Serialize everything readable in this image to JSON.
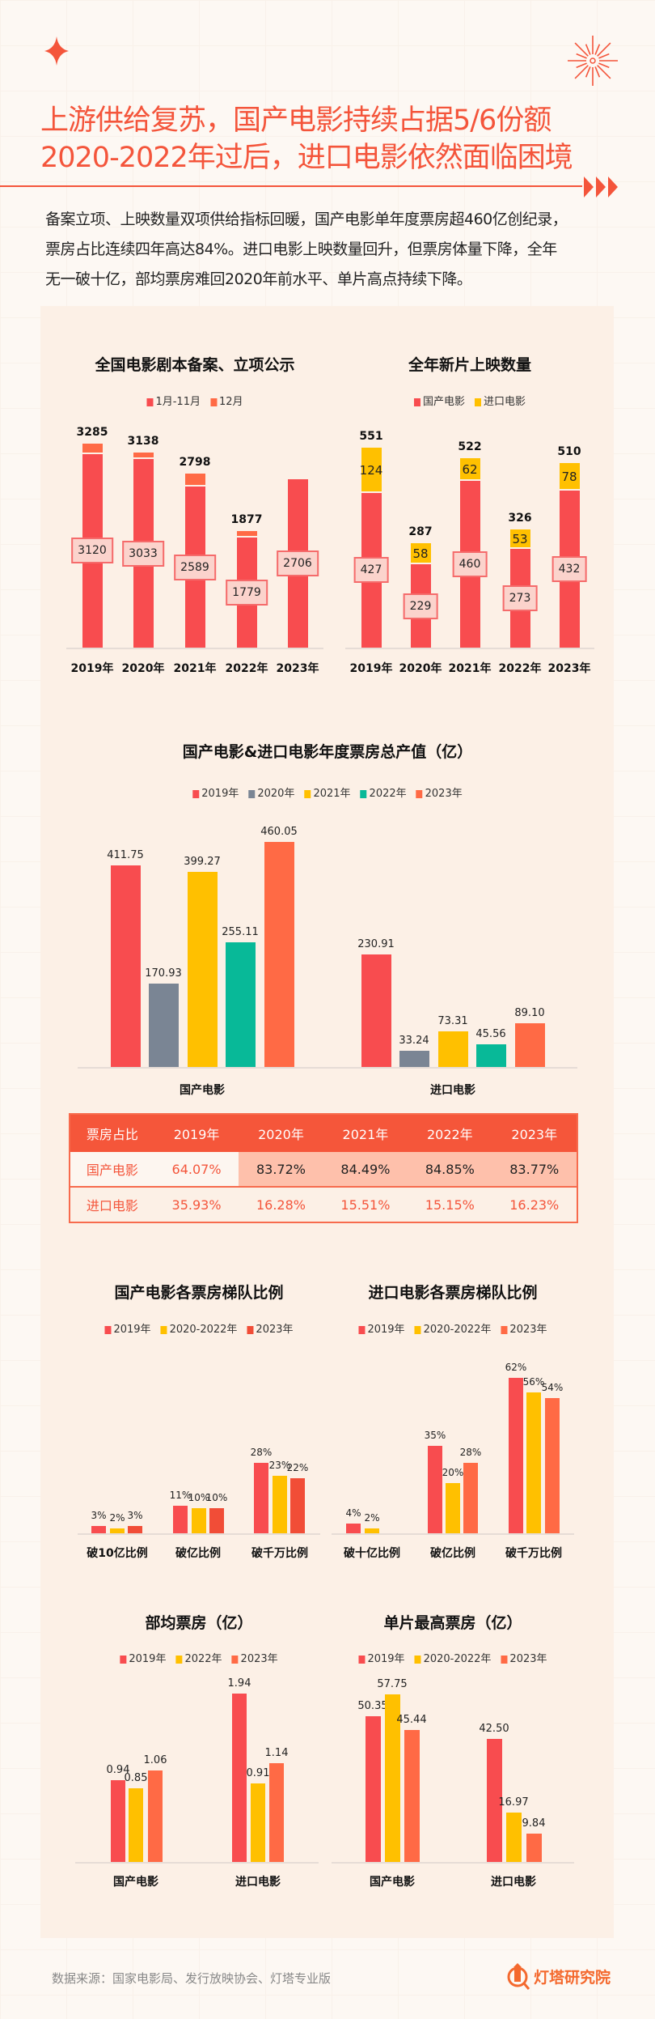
{
  "header": {
    "title_lines": [
      "上游供给复苏，国产电影持续占据5/6份额",
      "2020-2022年过后，进口电影依然面临困境"
    ],
    "summary_lines": [
      "备案立项、上映数量双项供给指标回暖，国产电影单年度票房超460亿创纪录，",
      "票房占比连续四年高达84%。进口电影上映数量回升，但票房体量下降，全年",
      "无一破十亿，部均票房难回2020年前水平、单片高点持续下降。"
    ],
    "accent_color": "#f4553b",
    "icons": [
      "sparkle-star-icon",
      "firework-icon",
      "triple-arrow-icon"
    ]
  },
  "colors": {
    "red": "#f84c4f",
    "orange": "#ff6a45",
    "yellow": "#ffc000",
    "gray": "#7a8594",
    "teal": "#08b998",
    "deep_orange": "#f14d37",
    "table_header": "#f5563a"
  },
  "chart_data": [
    {
      "type": "bar",
      "stacked": true,
      "title": "全国电影剧本备案、立项公示",
      "categories": [
        "2019年",
        "2020年",
        "2021年",
        "2022年",
        "2023年"
      ],
      "series": [
        {
          "name": "1月-11月",
          "color": "#f84c4f",
          "values": [
            3120,
            3033,
            2589,
            1779,
            2706
          ]
        },
        {
          "name": "12月",
          "color": "#ff6a45",
          "values": [
            165,
            105,
            209,
            98,
            null
          ]
        }
      ],
      "totals": [
        3285,
        3138,
        2798,
        1877,
        null
      ],
      "legend": "top",
      "grid": false
    },
    {
      "type": "bar",
      "stacked": true,
      "title": "全年新片上映数量",
      "categories": [
        "2019年",
        "2020年",
        "2021年",
        "2022年",
        "2023年"
      ],
      "series": [
        {
          "name": "国产电影",
          "color": "#f84c4f",
          "values": [
            427,
            229,
            460,
            273,
            432
          ]
        },
        {
          "name": "进口电影",
          "color": "#ffc000",
          "values": [
            124,
            58,
            62,
            53,
            78
          ]
        }
      ],
      "totals": [
        551,
        287,
        522,
        326,
        510
      ],
      "legend": "top",
      "grid": false
    },
    {
      "type": "bar",
      "title": "国产电影&进口电影年度票房总产值（亿）",
      "categories": [
        "国产电影",
        "进口电影"
      ],
      "decimals": 2,
      "series": [
        {
          "name": "2019年",
          "color": "#f84c4f",
          "values": [
            411.75,
            230.91
          ]
        },
        {
          "name": "2020年",
          "color": "#7a8594",
          "values": [
            170.93,
            33.24
          ]
        },
        {
          "name": "2021年",
          "color": "#ffc000",
          "values": [
            399.27,
            73.31
          ]
        },
        {
          "name": "2022年",
          "color": "#08b998",
          "values": [
            255.11,
            45.56
          ]
        },
        {
          "name": "2023年",
          "color": "#ff6a45",
          "values": [
            460.05,
            89.1
          ]
        }
      ],
      "legend": "top",
      "grid": false
    },
    {
      "type": "bar",
      "title": "国产电影各票房梯队比例",
      "categories": [
        "破10亿比例",
        "破亿比例",
        "破千万比例"
      ],
      "unit": "%",
      "decimals": 0,
      "series": [
        {
          "name": "2019年",
          "color": "#f84c4f",
          "values": [
            3,
            11,
            28
          ]
        },
        {
          "name": "2020-2022年",
          "color": "#ffc000",
          "values": [
            2,
            10,
            23
          ]
        },
        {
          "name": "2023年",
          "color": "#f14d37",
          "values": [
            3,
            10,
            22
          ]
        }
      ],
      "legend": "top",
      "grid": false
    },
    {
      "type": "bar",
      "title": "进口电影各票房梯队比例",
      "categories": [
        "破十亿比例",
        "破亿比例",
        "破千万比例"
      ],
      "unit": "%",
      "decimals": 0,
      "series": [
        {
          "name": "2019年",
          "color": "#f84c4f",
          "values": [
            4,
            35,
            62
          ]
        },
        {
          "name": "2020-2022年",
          "color": "#ffc000",
          "values": [
            2,
            20,
            56
          ]
        },
        {
          "name": "2023年",
          "color": "#ff6a45",
          "values": [
            null,
            28,
            54
          ]
        }
      ],
      "legend": "top",
      "grid": false
    },
    {
      "type": "bar",
      "title": "部均票房（亿）",
      "categories": [
        "国产电影",
        "进口电影"
      ],
      "decimals": 2,
      "series": [
        {
          "name": "2019年",
          "color": "#f84c4f",
          "values": [
            0.94,
            1.94
          ]
        },
        {
          "name": "2022年",
          "color": "#ffc000",
          "values": [
            0.85,
            0.91
          ]
        },
        {
          "name": "2023年",
          "color": "#ff6a45",
          "values": [
            1.06,
            1.14
          ]
        }
      ],
      "legend": "top",
      "grid": false
    },
    {
      "type": "bar",
      "title": "单片最高票房（亿）",
      "categories": [
        "国产电影",
        "进口电影"
      ],
      "decimals": 2,
      "series": [
        {
          "name": "2019年",
          "color": "#f84c4f",
          "values": [
            50.35,
            42.5
          ]
        },
        {
          "name": "2020-2022年",
          "color": "#ffc000",
          "values": [
            57.75,
            16.97
          ]
        },
        {
          "name": "2023年",
          "color": "#ff6a45",
          "values": [
            45.44,
            9.84
          ]
        }
      ],
      "legend": "top",
      "grid": false
    }
  ],
  "share_table": {
    "header": [
      "票房占比",
      "2019年",
      "2020年",
      "2021年",
      "2022年",
      "2023年"
    ],
    "rows": [
      [
        "国产电影",
        "64.07%",
        "83.72%",
        "84.49%",
        "84.85%",
        "83.77%"
      ],
      [
        "进口电影",
        "35.93%",
        "16.28%",
        "15.51%",
        "15.15%",
        "16.23%"
      ]
    ]
  },
  "footer": {
    "source": "数据来源：国家电影局、发行放映协会、灯塔专业版",
    "brand": "灯塔研究院",
    "brand_icon": "lighthouse-search-icon"
  }
}
